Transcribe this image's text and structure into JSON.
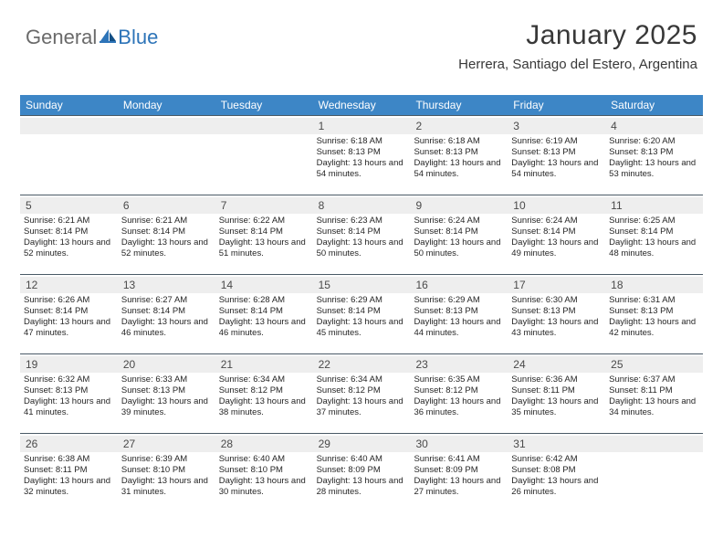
{
  "logo": {
    "part1": "General",
    "part2": "Blue"
  },
  "calendar": {
    "title": "January 2025",
    "location": "Herrera, Santiago del Estero, Argentina",
    "title_color": "#383838",
    "title_fontsize": 30,
    "location_fontsize": 15,
    "header_bg": "#3d86c6",
    "header_fg": "#ffffff",
    "daynum_bg": "#eeeeee",
    "border_color": "#4a5a66",
    "text_color": "#262626",
    "columns": [
      "Sunday",
      "Monday",
      "Tuesday",
      "Wednesday",
      "Thursday",
      "Friday",
      "Saturday"
    ],
    "weeks": [
      [
        null,
        null,
        null,
        {
          "n": "1",
          "sr": "6:18 AM",
          "ss": "8:13 PM",
          "dl": "13 hours and 54 minutes."
        },
        {
          "n": "2",
          "sr": "6:18 AM",
          "ss": "8:13 PM",
          "dl": "13 hours and 54 minutes."
        },
        {
          "n": "3",
          "sr": "6:19 AM",
          "ss": "8:13 PM",
          "dl": "13 hours and 54 minutes."
        },
        {
          "n": "4",
          "sr": "6:20 AM",
          "ss": "8:13 PM",
          "dl": "13 hours and 53 minutes."
        }
      ],
      [
        {
          "n": "5",
          "sr": "6:21 AM",
          "ss": "8:14 PM",
          "dl": "13 hours and 52 minutes."
        },
        {
          "n": "6",
          "sr": "6:21 AM",
          "ss": "8:14 PM",
          "dl": "13 hours and 52 minutes."
        },
        {
          "n": "7",
          "sr": "6:22 AM",
          "ss": "8:14 PM",
          "dl": "13 hours and 51 minutes."
        },
        {
          "n": "8",
          "sr": "6:23 AM",
          "ss": "8:14 PM",
          "dl": "13 hours and 50 minutes."
        },
        {
          "n": "9",
          "sr": "6:24 AM",
          "ss": "8:14 PM",
          "dl": "13 hours and 50 minutes."
        },
        {
          "n": "10",
          "sr": "6:24 AM",
          "ss": "8:14 PM",
          "dl": "13 hours and 49 minutes."
        },
        {
          "n": "11",
          "sr": "6:25 AM",
          "ss": "8:14 PM",
          "dl": "13 hours and 48 minutes."
        }
      ],
      [
        {
          "n": "12",
          "sr": "6:26 AM",
          "ss": "8:14 PM",
          "dl": "13 hours and 47 minutes."
        },
        {
          "n": "13",
          "sr": "6:27 AM",
          "ss": "8:14 PM",
          "dl": "13 hours and 46 minutes."
        },
        {
          "n": "14",
          "sr": "6:28 AM",
          "ss": "8:14 PM",
          "dl": "13 hours and 46 minutes."
        },
        {
          "n": "15",
          "sr": "6:29 AM",
          "ss": "8:14 PM",
          "dl": "13 hours and 45 minutes."
        },
        {
          "n": "16",
          "sr": "6:29 AM",
          "ss": "8:13 PM",
          "dl": "13 hours and 44 minutes."
        },
        {
          "n": "17",
          "sr": "6:30 AM",
          "ss": "8:13 PM",
          "dl": "13 hours and 43 minutes."
        },
        {
          "n": "18",
          "sr": "6:31 AM",
          "ss": "8:13 PM",
          "dl": "13 hours and 42 minutes."
        }
      ],
      [
        {
          "n": "19",
          "sr": "6:32 AM",
          "ss": "8:13 PM",
          "dl": "13 hours and 41 minutes."
        },
        {
          "n": "20",
          "sr": "6:33 AM",
          "ss": "8:13 PM",
          "dl": "13 hours and 39 minutes."
        },
        {
          "n": "21",
          "sr": "6:34 AM",
          "ss": "8:12 PM",
          "dl": "13 hours and 38 minutes."
        },
        {
          "n": "22",
          "sr": "6:34 AM",
          "ss": "8:12 PM",
          "dl": "13 hours and 37 minutes."
        },
        {
          "n": "23",
          "sr": "6:35 AM",
          "ss": "8:12 PM",
          "dl": "13 hours and 36 minutes."
        },
        {
          "n": "24",
          "sr": "6:36 AM",
          "ss": "8:11 PM",
          "dl": "13 hours and 35 minutes."
        },
        {
          "n": "25",
          "sr": "6:37 AM",
          "ss": "8:11 PM",
          "dl": "13 hours and 34 minutes."
        }
      ],
      [
        {
          "n": "26",
          "sr": "6:38 AM",
          "ss": "8:11 PM",
          "dl": "13 hours and 32 minutes."
        },
        {
          "n": "27",
          "sr": "6:39 AM",
          "ss": "8:10 PM",
          "dl": "13 hours and 31 minutes."
        },
        {
          "n": "28",
          "sr": "6:40 AM",
          "ss": "8:10 PM",
          "dl": "13 hours and 30 minutes."
        },
        {
          "n": "29",
          "sr": "6:40 AM",
          "ss": "8:09 PM",
          "dl": "13 hours and 28 minutes."
        },
        {
          "n": "30",
          "sr": "6:41 AM",
          "ss": "8:09 PM",
          "dl": "13 hours and 27 minutes."
        },
        {
          "n": "31",
          "sr": "6:42 AM",
          "ss": "8:08 PM",
          "dl": "13 hours and 26 minutes."
        },
        null
      ]
    ],
    "labels": {
      "sunrise": "Sunrise:",
      "sunset": "Sunset:",
      "daylight": "Daylight:"
    }
  }
}
